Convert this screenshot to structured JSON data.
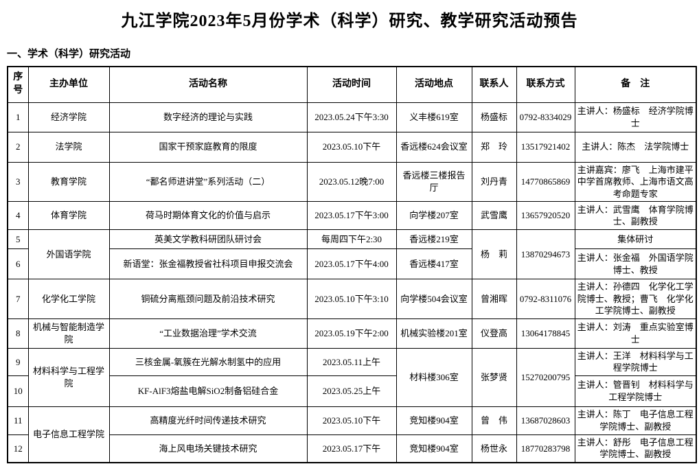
{
  "page": {
    "title": "九江学院2023年5月份学术（科学）研究、教学研究活动预告",
    "section_heading": "一、学术（科学）研究活动"
  },
  "table": {
    "headers": [
      "序号",
      "主办单位",
      "活动名称",
      "活动时间",
      "活动地点",
      "联系人",
      "联系方式",
      "备　注"
    ],
    "rows": [
      {
        "cells": [
          {
            "text": "1"
          },
          {
            "text": "经济学院"
          },
          {
            "text": "数字经济的理论与实践"
          },
          {
            "text": "2023.05.24下午3:30"
          },
          {
            "text": "义丰楼619室"
          },
          {
            "text": "杨盛标"
          },
          {
            "text": "0792-8334029"
          },
          {
            "text": "主讲人：杨盛标　经济学院博士"
          }
        ]
      },
      {
        "cells": [
          {
            "text": "2"
          },
          {
            "text": "法学院"
          },
          {
            "text": "国家干预家庭教育的限度"
          },
          {
            "text": "2023.05.10下午"
          },
          {
            "text": "香远楼624会议室"
          },
          {
            "text": "郑　玲"
          },
          {
            "text": "13517921402"
          },
          {
            "text": "主讲人：陈杰　法学院博士"
          }
        ]
      },
      {
        "cells": [
          {
            "text": "3"
          },
          {
            "text": "教育学院"
          },
          {
            "text": "“鄱名师进讲堂”系列活动（二）"
          },
          {
            "text": "2023.05.12晚7:00"
          },
          {
            "text": "香远楼三楼报告厅"
          },
          {
            "text": "刘丹青"
          },
          {
            "text": "14770865869"
          },
          {
            "text": "主讲嘉宾：廖飞　上海市建平中学首席教师、上海市语文高考命题专家"
          }
        ]
      },
      {
        "cells": [
          {
            "text": "4"
          },
          {
            "text": "体育学院"
          },
          {
            "text": "荷马时期体育文化的价值与启示"
          },
          {
            "text": "2023.05.17下午3:00"
          },
          {
            "text": "向学楼207室"
          },
          {
            "text": "武雪鹰"
          },
          {
            "text": "13657920520"
          },
          {
            "text": "主讲人：武雪鹰　体育学院博士、副教授"
          }
        ]
      },
      {
        "cells": [
          {
            "text": "5"
          },
          {
            "text": "外国语学院",
            "rowspan": 2
          },
          {
            "text": "英美文学教科研团队研讨会"
          },
          {
            "text": "每周四下午2:30"
          },
          {
            "text": "香远楼219室"
          },
          {
            "text": "杨　莉",
            "rowspan": 2
          },
          {
            "text": "13870294673",
            "rowspan": 2
          },
          {
            "text": "集体研讨"
          }
        ]
      },
      {
        "cells": [
          {
            "text": "6"
          },
          {
            "text": "新语堂：张金福教授省社科项目申报交流会"
          },
          {
            "text": "2023.05.17下午4:00"
          },
          {
            "text": "香远楼417室"
          },
          {
            "text": "主讲人：张金福　外国语学院博士、教授"
          }
        ]
      },
      {
        "cells": [
          {
            "text": "7"
          },
          {
            "text": "化学化工学院"
          },
          {
            "text": "铜硫分离瓶颈问题及前沿技术研究"
          },
          {
            "text": "2023.05.10下午3:10"
          },
          {
            "text": "向学楼504会议室"
          },
          {
            "text": "曾湘晖"
          },
          {
            "text": "0792-8311076"
          },
          {
            "text": "主讲人：孙德四　化学化工学院博士、教授；曹飞　化学化工学院博士、副教授"
          }
        ]
      },
      {
        "cells": [
          {
            "text": "8"
          },
          {
            "text": "机械与智能制造学院"
          },
          {
            "text": "“工业数据治理”学术交流"
          },
          {
            "text": "2023.05.19下午2:00"
          },
          {
            "text": "机械实验楼201室"
          },
          {
            "text": "仪登高"
          },
          {
            "text": "13064178845"
          },
          {
            "text": "主讲人：刘涛　重点实验室博士"
          }
        ]
      },
      {
        "cells": [
          {
            "text": "9"
          },
          {
            "text": "材料科学与工程学院",
            "rowspan": 2
          },
          {
            "text": "三核金属-氧簇在光解水制氢中的应用"
          },
          {
            "text": "2023.05.11上午"
          },
          {
            "text": "材料楼306室",
            "rowspan": 2
          },
          {
            "text": "张梦贤",
            "rowspan": 2
          },
          {
            "text": "15270200795",
            "rowspan": 2
          },
          {
            "text": "主讲人：王洋　材料科学与工程学院博士"
          }
        ]
      },
      {
        "cells": [
          {
            "text": "10"
          },
          {
            "text": "KF-AlF3熔盐电解SiO2制备铝硅合金"
          },
          {
            "text": "2023.05.25上午"
          },
          {
            "text": "主讲人：管晋钊　材料科学与工程学院博士"
          }
        ]
      },
      {
        "cells": [
          {
            "text": "11"
          },
          {
            "text": "电子信息工程学院",
            "rowspan": 2
          },
          {
            "text": "高精度光纤时间传递技术研究"
          },
          {
            "text": "2023.05.10下午"
          },
          {
            "text": "竞知楼904室"
          },
          {
            "text": "曾　伟"
          },
          {
            "text": "13687028603"
          },
          {
            "text": "主讲人：陈丁　电子信息工程学院博士、副教授"
          }
        ]
      },
      {
        "cells": [
          {
            "text": "12"
          },
          {
            "text": "海上风电场关键技术研究"
          },
          {
            "text": "2023.05.17下午"
          },
          {
            "text": "竞知楼904室"
          },
          {
            "text": "杨世永"
          },
          {
            "text": "18770283798"
          },
          {
            "text": "主讲人：舒彤　电子信息工程学院博士、副教授"
          }
        ]
      }
    ]
  }
}
